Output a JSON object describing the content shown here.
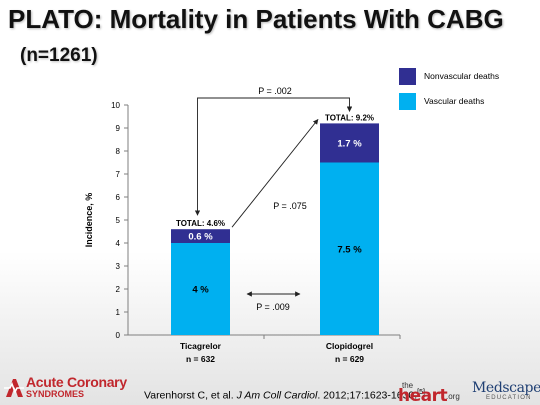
{
  "slide": {
    "title": "PLATO: Mortality in Patients With CABG",
    "subtitle": "(n=1261)"
  },
  "chart_data": {
    "type": "bar",
    "stacked": true,
    "categories": [
      "Ticagrelor",
      "Clopidogrel"
    ],
    "category_n": [
      "n = 632",
      "n = 629"
    ],
    "series": [
      {
        "name": "Vascular deaths",
        "values": [
          4.0,
          7.5
        ],
        "labels": [
          "4 %",
          "7.5 %"
        ],
        "color": "#00b0f0"
      },
      {
        "name": "Nonvascular deaths",
        "values": [
          0.6,
          1.7
        ],
        "labels": [
          "0.6 %",
          "1.7 %"
        ],
        "color": "#302f92"
      }
    ],
    "totals": [
      4.6,
      9.2
    ],
    "total_labels": [
      "TOTAL: 4.6%",
      "TOTAL: 9.2%"
    ],
    "ylabel": "Incidence, %",
    "ylim": [
      0,
      10
    ],
    "yticks": [
      0,
      1,
      2,
      3,
      4,
      5,
      6,
      7,
      8,
      9,
      10
    ],
    "grid": false,
    "legend_position": "top-right",
    "annotations": [
      {
        "text": "P = .002",
        "type": "bracket-between-totals"
      },
      {
        "text": "P = .075",
        "type": "arrow-between-nonvascular"
      },
      {
        "text": "P = .009",
        "type": "double-arrow-between-vascular"
      }
    ]
  },
  "footer": {
    "citation_authors": "Varenhorst C, et al. ",
    "citation_journal": "J Am Coll Cardiol",
    "citation_details": ". 2012;17:1623-1630.",
    "citation_ref": "[5]",
    "logo_acs_line1": "Acute Coronary",
    "logo_acs_line2": "SYNDROMES",
    "logo_heart_the": "the",
    "logo_heart_main": "heart",
    "logo_heart_org": ".org",
    "logo_medscape_main": "Medscape",
    "logo_medscape_sub": "EDUCATION"
  }
}
